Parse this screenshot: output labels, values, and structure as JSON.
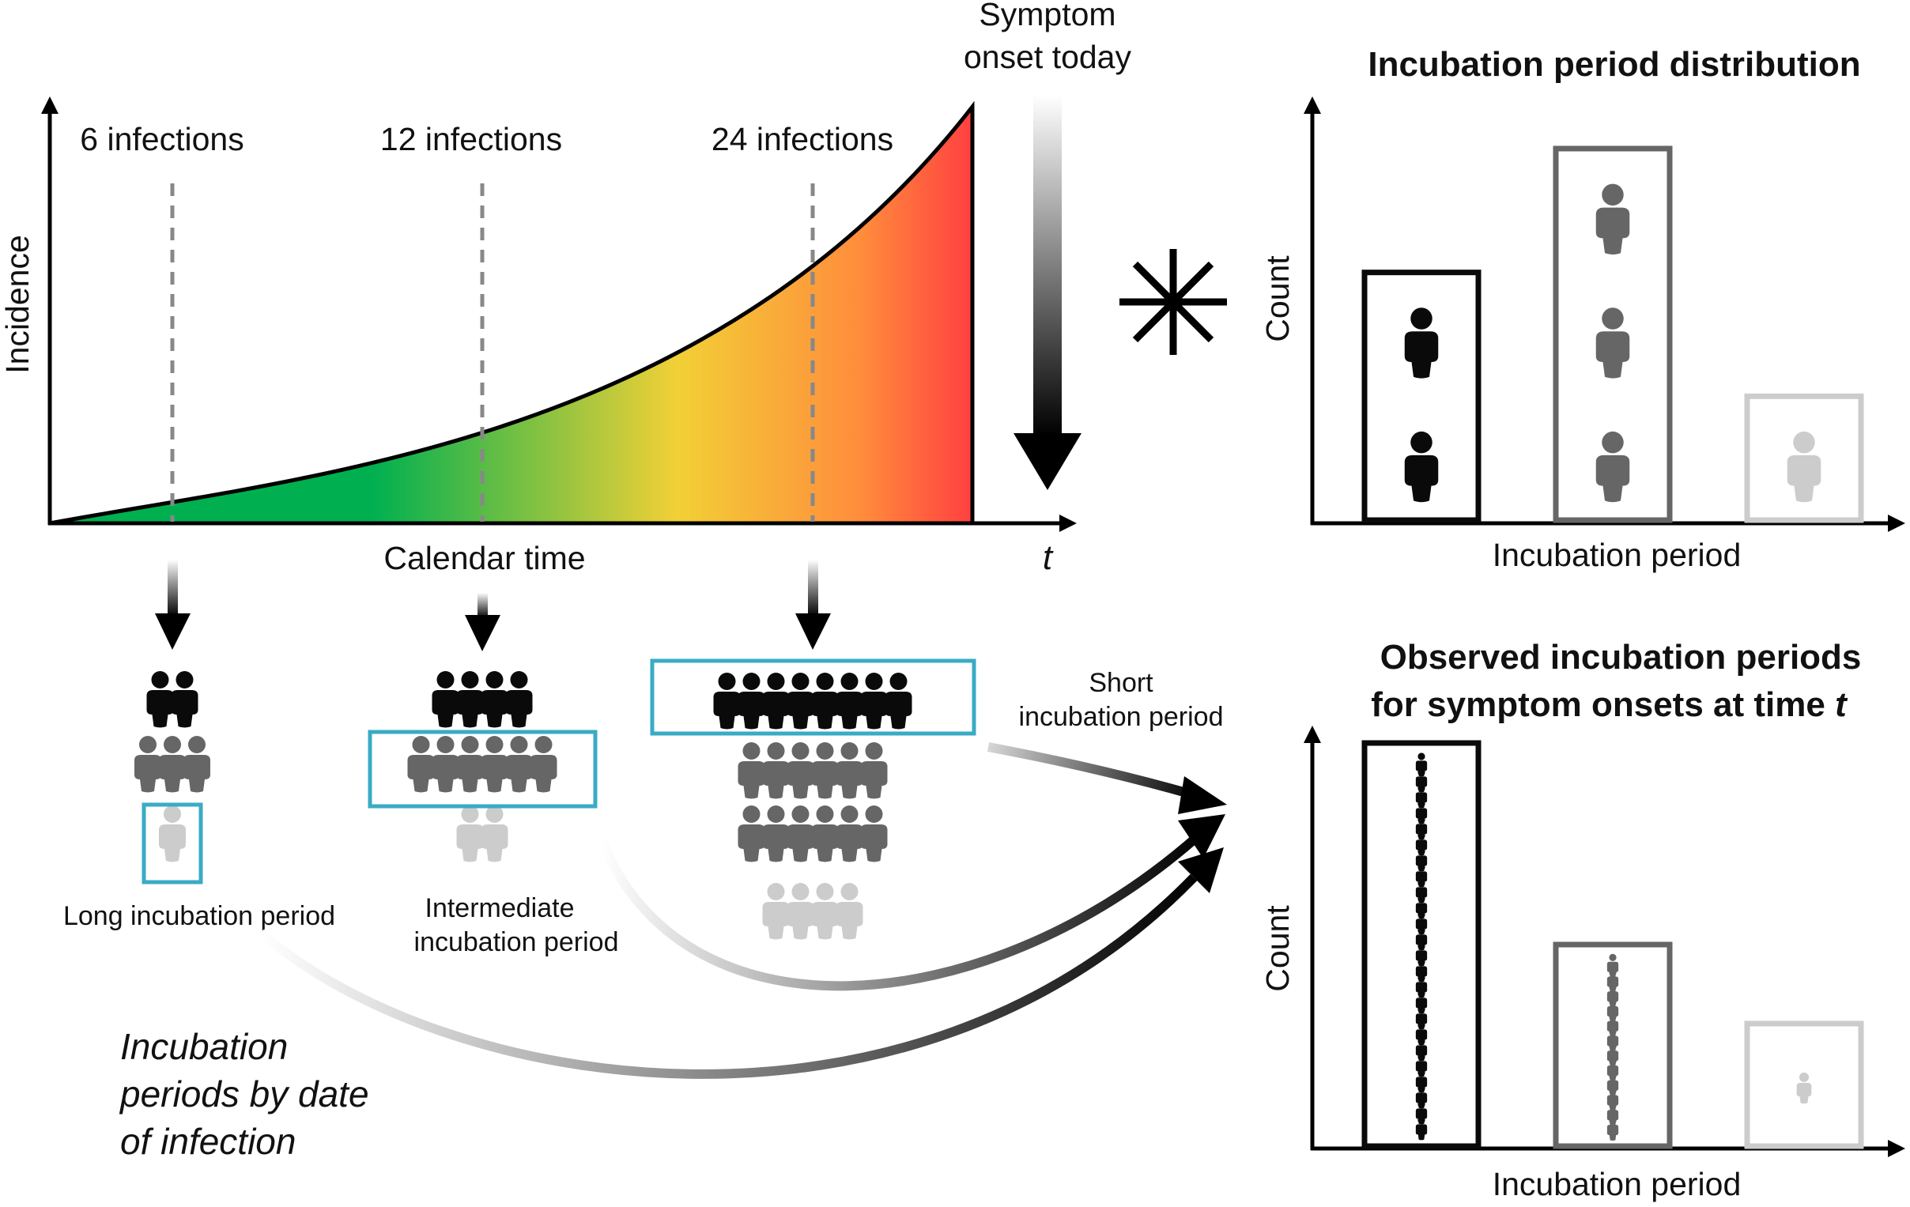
{
  "symptom_onset": {
    "line1": "Symptom",
    "line2": "onset today"
  },
  "incidence_plot": {
    "ylabel": "Incidence",
    "xlabel": "Calendar time",
    "t_label": "t",
    "markers": [
      "6 infections",
      "12 infections",
      "24 infections"
    ]
  },
  "convolution_symbol": "∗",
  "top_right_chart": {
    "title": "Incubation period distribution",
    "ylabel": "Count",
    "xlabel": "Incubation period",
    "counts": [
      2,
      3,
      1
    ]
  },
  "bottom_right_chart": {
    "title_line1": "Observed incubation periods",
    "title_line2": "for symptom onsets at time ",
    "title_t": "t",
    "ylabel": "Count",
    "xlabel": "Incubation period",
    "counts": [
      24,
      12,
      1
    ]
  },
  "groups": {
    "group1": {
      "counts": [
        2,
        3,
        1
      ],
      "label": "Long incubation period"
    },
    "group2": {
      "counts": [
        4,
        6,
        2
      ],
      "label_line1": "Intermediate",
      "label_line2": "incubation period"
    },
    "group3": {
      "counts": [
        8,
        12,
        4
      ],
      "label_line1": "Short",
      "label_line2": "incubation period"
    }
  },
  "caption": {
    "line1": "Incubation",
    "line2": "periods by date",
    "line3": "of infection"
  },
  "colors": {
    "short": "#0a0a0a",
    "intermediate": "#666666",
    "long": "#cccccc",
    "highlight_box": "#3aabc4",
    "gradient": [
      "#00b050",
      "#f2d036",
      "#ff8c3c",
      "#ff4040"
    ]
  }
}
